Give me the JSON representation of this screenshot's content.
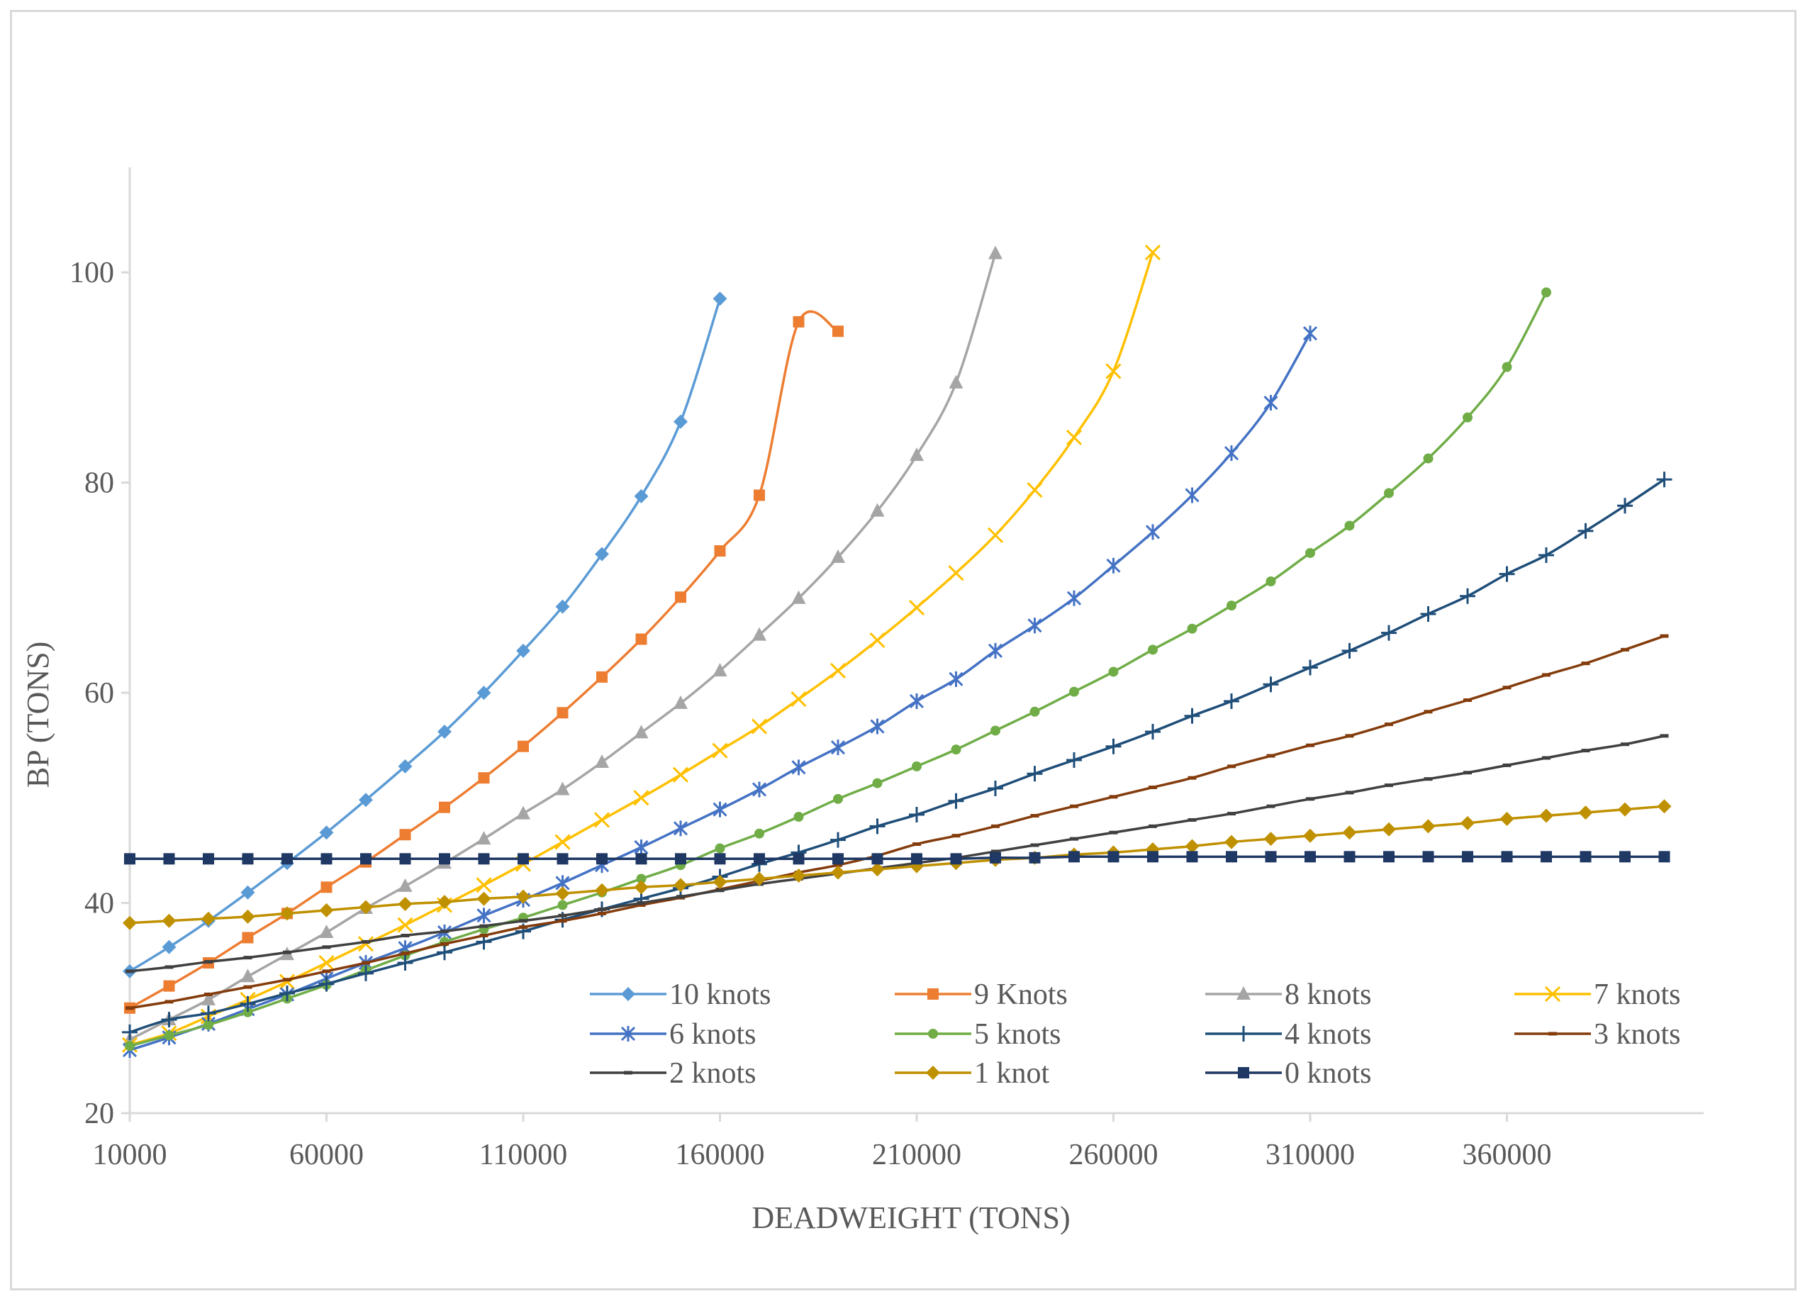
{
  "chart_data": {
    "type": "line",
    "title": "",
    "xlabel": "DEADWEIGHT (TONS)",
    "ylabel": "BP (TONS)",
    "xlim": [
      10000,
      410000
    ],
    "ylim": [
      20,
      110
    ],
    "xticks": [
      10000,
      60000,
      110000,
      160000,
      210000,
      260000,
      310000,
      360000
    ],
    "yticks": [
      20,
      40,
      60,
      80,
      100
    ],
    "legend_position": "bottom-right inside plot",
    "series": [
      {
        "name": "10 knots",
        "color": "#5b9bd5",
        "marker": "diamond",
        "x": [
          10000,
          20000,
          30000,
          40000,
          50000,
          60000,
          70000,
          80000,
          90000,
          100000,
          110000,
          120000,
          130000,
          140000,
          150000,
          160000
        ],
        "y": [
          33.5,
          35.8,
          38.3,
          41,
          43.8,
          46.7,
          49.8,
          53,
          56.3,
          60,
          64,
          68.2,
          73.2,
          78.7,
          85.8,
          97.5
        ]
      },
      {
        "name": "9 Knots",
        "color": "#ed7d31",
        "marker": "square",
        "x": [
          10000,
          20000,
          30000,
          40000,
          50000,
          60000,
          70000,
          80000,
          90000,
          100000,
          110000,
          120000,
          130000,
          140000,
          150000,
          160000,
          170000,
          180000,
          190000
        ],
        "y": [
          30,
          32.1,
          34.3,
          36.7,
          39,
          41.5,
          43.9,
          46.5,
          49.1,
          51.9,
          54.9,
          58.1,
          61.5,
          65.1,
          69.1,
          73.5,
          78.8,
          95.3,
          94.4
        ]
      },
      {
        "name": "8 knots",
        "color": "#a5a5a5",
        "marker": "triangle",
        "x": [
          10000,
          20000,
          30000,
          40000,
          50000,
          60000,
          70000,
          80000,
          90000,
          100000,
          110000,
          120000,
          130000,
          140000,
          150000,
          160000,
          170000,
          180000,
          190000,
          200000,
          210000,
          220000,
          230000
        ],
        "y": [
          27,
          28.9,
          30.8,
          33,
          35.1,
          37.2,
          39.5,
          41.6,
          43.8,
          46.1,
          48.5,
          50.8,
          53.4,
          56.2,
          59,
          62.1,
          65.5,
          69,
          72.9,
          77.3,
          82.6,
          89.5,
          101.8
        ]
      },
      {
        "name": "7 knots",
        "color": "#ffc000",
        "marker": "x",
        "x": [
          10000,
          20000,
          30000,
          40000,
          50000,
          60000,
          70000,
          80000,
          90000,
          100000,
          110000,
          120000,
          130000,
          140000,
          150000,
          160000,
          170000,
          180000,
          190000,
          200000,
          210000,
          220000,
          230000,
          240000,
          250000,
          260000,
          270000
        ],
        "y": [
          26.5,
          27.6,
          29.2,
          30.8,
          32.5,
          34.3,
          36.1,
          37.9,
          39.8,
          41.7,
          43.7,
          45.8,
          47.9,
          50,
          52.2,
          54.5,
          56.8,
          59.4,
          62.1,
          65,
          68.1,
          71.4,
          75,
          79.3,
          84.3,
          90.6,
          101.9
        ]
      },
      {
        "name": "6 knots",
        "color": "#4472c4",
        "marker": "star",
        "x": [
          10000,
          20000,
          30000,
          40000,
          50000,
          60000,
          70000,
          80000,
          90000,
          100000,
          110000,
          120000,
          130000,
          140000,
          150000,
          160000,
          170000,
          180000,
          190000,
          200000,
          210000,
          220000,
          230000,
          240000,
          250000,
          260000,
          270000,
          280000,
          290000,
          300000,
          310000
        ],
        "y": [
          26,
          27.2,
          28.5,
          29.9,
          31.3,
          32.8,
          34.3,
          35.7,
          37.2,
          38.8,
          40.3,
          41.9,
          43.6,
          45.3,
          47.1,
          48.9,
          50.8,
          52.9,
          54.8,
          56.8,
          59.2,
          61.3,
          64,
          66.4,
          69,
          72.1,
          75.3,
          78.8,
          82.8,
          87.6,
          94.2
        ]
      },
      {
        "name": "5 knots",
        "color": "#70ad47",
        "marker": "circle",
        "x": [
          10000,
          20000,
          30000,
          40000,
          50000,
          60000,
          70000,
          80000,
          90000,
          100000,
          110000,
          120000,
          130000,
          140000,
          150000,
          160000,
          170000,
          180000,
          190000,
          200000,
          210000,
          220000,
          230000,
          240000,
          250000,
          260000,
          270000,
          280000,
          290000,
          300000,
          310000,
          320000,
          330000,
          340000,
          350000,
          360000,
          370000
        ],
        "y": [
          26.4,
          27.4,
          28.4,
          29.6,
          30.9,
          32.2,
          33.6,
          35,
          36.3,
          37.5,
          38.6,
          39.8,
          41,
          42.3,
          43.6,
          45.2,
          46.6,
          48.2,
          49.9,
          51.4,
          53,
          54.6,
          56.4,
          58.2,
          60.1,
          62,
          64.1,
          66.1,
          68.3,
          70.6,
          73.3,
          75.9,
          79,
          82.3,
          86.2,
          91,
          98.1
        ]
      },
      {
        "name": "4 knots",
        "color": "#1f4e79",
        "marker": "plus",
        "x": [
          10000,
          20000,
          30000,
          40000,
          50000,
          60000,
          70000,
          80000,
          90000,
          100000,
          110000,
          120000,
          130000,
          140000,
          150000,
          160000,
          170000,
          180000,
          190000,
          200000,
          210000,
          220000,
          230000,
          240000,
          250000,
          260000,
          270000,
          280000,
          290000,
          300000,
          310000,
          320000,
          330000,
          340000,
          350000,
          360000,
          370000,
          380000,
          390000,
          400000
        ],
        "y": [
          27.7,
          28.9,
          29.5,
          30.4,
          31.4,
          32.3,
          33.3,
          34.3,
          35.3,
          36.3,
          37.3,
          38.4,
          39.4,
          40.4,
          41.4,
          42.5,
          43.7,
          44.8,
          46,
          47.3,
          48.4,
          49.7,
          50.9,
          52.3,
          53.6,
          54.9,
          56.3,
          57.8,
          59.2,
          60.8,
          62.4,
          64,
          65.7,
          67.5,
          69.2,
          71.3,
          73.1,
          75.4,
          77.8,
          80.3
        ]
      },
      {
        "name": "3 knots",
        "color": "#843c0c",
        "marker": "dash",
        "x": [
          10000,
          20000,
          30000,
          40000,
          50000,
          60000,
          70000,
          80000,
          90000,
          100000,
          110000,
          120000,
          130000,
          140000,
          150000,
          160000,
          170000,
          180000,
          190000,
          200000,
          210000,
          220000,
          230000,
          240000,
          250000,
          260000,
          270000,
          280000,
          290000,
          300000,
          310000,
          320000,
          330000,
          340000,
          350000,
          360000,
          370000,
          380000,
          390000,
          400000
        ],
        "y": [
          30,
          30.6,
          31.3,
          32,
          32.7,
          33.5,
          34.3,
          35.2,
          36.1,
          36.9,
          37.7,
          38.3,
          39,
          39.8,
          40.5,
          41.3,
          42.1,
          42.9,
          43.6,
          44.5,
          45.6,
          46.4,
          47.3,
          48.3,
          49.2,
          50.1,
          51,
          51.9,
          53,
          54,
          55,
          55.9,
          57,
          58.2,
          59.3,
          60.5,
          61.7,
          62.8,
          64.1,
          65.4
        ]
      },
      {
        "name": "2 knots",
        "color": "#404040",
        "marker": "dash",
        "x": [
          10000,
          20000,
          30000,
          40000,
          50000,
          60000,
          70000,
          80000,
          90000,
          100000,
          110000,
          120000,
          130000,
          140000,
          150000,
          160000,
          170000,
          180000,
          190000,
          200000,
          210000,
          220000,
          230000,
          240000,
          250000,
          260000,
          270000,
          280000,
          290000,
          300000,
          310000,
          320000,
          330000,
          340000,
          350000,
          360000,
          370000,
          380000,
          390000,
          400000
        ],
        "y": [
          33.5,
          33.9,
          34.4,
          34.8,
          35.3,
          35.8,
          36.3,
          36.9,
          37.3,
          37.8,
          38.3,
          38.8,
          39.4,
          40,
          40.6,
          41.2,
          41.8,
          42.3,
          42.8,
          43.3,
          43.8,
          44.3,
          44.9,
          45.5,
          46.1,
          46.7,
          47.3,
          47.9,
          48.5,
          49.2,
          49.9,
          50.5,
          51.2,
          51.8,
          52.4,
          53.1,
          53.8,
          54.5,
          55.1,
          55.9
        ]
      },
      {
        "name": "1 knot",
        "color": "#bf9000",
        "marker": "diamond",
        "x": [
          10000,
          20000,
          30000,
          40000,
          50000,
          60000,
          70000,
          80000,
          90000,
          100000,
          110000,
          120000,
          130000,
          140000,
          150000,
          160000,
          170000,
          180000,
          190000,
          200000,
          210000,
          220000,
          230000,
          240000,
          250000,
          260000,
          270000,
          280000,
          290000,
          300000,
          310000,
          320000,
          330000,
          340000,
          350000,
          360000,
          370000,
          380000,
          390000,
          400000
        ],
        "y": [
          38.1,
          38.3,
          38.5,
          38.7,
          39,
          39.3,
          39.6,
          39.9,
          40.1,
          40.4,
          40.6,
          40.9,
          41.2,
          41.5,
          41.7,
          42,
          42.3,
          42.6,
          42.9,
          43.2,
          43.5,
          43.8,
          44.1,
          44.3,
          44.6,
          44.8,
          45.1,
          45.4,
          45.8,
          46.1,
          46.4,
          46.7,
          47,
          47.3,
          47.6,
          48,
          48.3,
          48.6,
          48.9,
          49.2
        ]
      },
      {
        "name": "0 knots",
        "color": "#1f3864",
        "marker": "square",
        "x": [
          10000,
          20000,
          30000,
          40000,
          50000,
          60000,
          70000,
          80000,
          90000,
          100000,
          110000,
          120000,
          130000,
          140000,
          150000,
          160000,
          170000,
          180000,
          190000,
          200000,
          210000,
          220000,
          230000,
          240000,
          250000,
          260000,
          270000,
          280000,
          290000,
          300000,
          310000,
          320000,
          330000,
          340000,
          350000,
          360000,
          370000,
          380000,
          390000,
          400000
        ],
        "y": [
          44.2,
          44.2,
          44.2,
          44.2,
          44.2,
          44.2,
          44.2,
          44.2,
          44.2,
          44.2,
          44.2,
          44.2,
          44.2,
          44.2,
          44.2,
          44.2,
          44.2,
          44.2,
          44.2,
          44.2,
          44.2,
          44.2,
          44.3,
          44.3,
          44.4,
          44.4,
          44.4,
          44.4,
          44.4,
          44.4,
          44.4,
          44.4,
          44.4,
          44.4,
          44.4,
          44.4,
          44.4,
          44.4,
          44.4,
          44.4
        ]
      }
    ]
  }
}
